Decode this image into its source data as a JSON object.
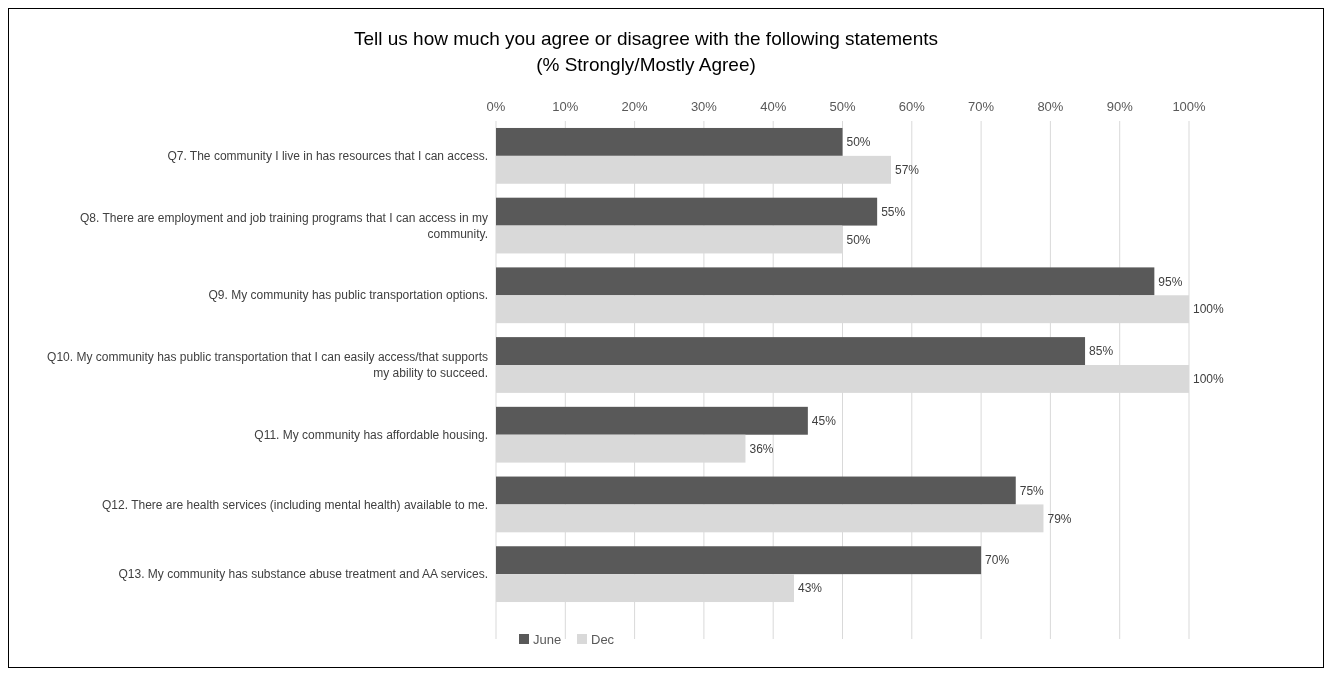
{
  "chart_data": {
    "type": "bar",
    "orientation": "horizontal",
    "title": "Tell us how much you agree or disagree with the following statements",
    "subtitle": "(% Strongly/Mostly Agree)",
    "categories": [
      "Q7. The community I live in has resources that I can access.",
      "Q8. There are employment and job training programs that I can access in my community.",
      "Q9. My community has public transportation options.",
      "Q10. My community has public transportation that I can easily access/that supports my ability to succeed.",
      "Q11. My community has affordable housing.",
      "Q12. There are health services (including mental health) available to me.",
      "Q13. My community has substance abuse treatment and AA services."
    ],
    "series": [
      {
        "name": "June",
        "color": "#595959",
        "values": [
          50,
          55,
          95,
          85,
          45,
          75,
          70
        ],
        "value_labels": [
          "50%",
          "55%",
          "95%",
          "85%",
          "45%",
          "75%",
          "70%"
        ]
      },
      {
        "name": "Dec",
        "color": "#d9d9d9",
        "values": [
          57,
          50,
          100,
          100,
          36,
          79,
          43
        ],
        "value_labels": [
          "57%",
          "50%",
          "100%",
          "100%",
          "36%",
          "79%",
          "43%"
        ]
      }
    ],
    "xlim": [
      0,
      100
    ],
    "xticks": [
      {
        "value": 0,
        "label": "0%"
      },
      {
        "value": 10,
        "label": "10%"
      },
      {
        "value": 20,
        "label": "20%"
      },
      {
        "value": 30,
        "label": "30%"
      },
      {
        "value": 40,
        "label": "40%"
      },
      {
        "value": 50,
        "label": "50%"
      },
      {
        "value": 60,
        "label": "60%"
      },
      {
        "value": 70,
        "label": "70%"
      },
      {
        "value": 80,
        "label": "80%"
      },
      {
        "value": 90,
        "label": "90%"
      },
      {
        "value": 100,
        "label": "100%"
      }
    ],
    "grid": "x",
    "legend": "bottom left"
  }
}
